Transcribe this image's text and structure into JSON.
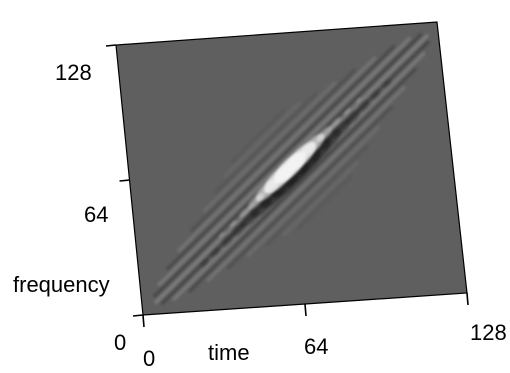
{
  "chart_data": {
    "type": "heatmap",
    "title": "",
    "xlabel": "time",
    "ylabel": "frequency",
    "x_ticks": [
      "0",
      "64",
      "128"
    ],
    "y_ticks": [
      "0",
      "64",
      "128"
    ],
    "xlim": [
      0,
      128
    ],
    "ylim": [
      0,
      128
    ],
    "grid": false,
    "colormap": "gray",
    "colors": {
      "background": "#5f5f5f",
      "positive": "#ffffff",
      "negative": "#000000"
    },
    "ridge": {
      "start": [
        0,
        0
      ],
      "end": [
        128,
        128
      ],
      "peak_at": [
        64,
        64
      ]
    }
  }
}
